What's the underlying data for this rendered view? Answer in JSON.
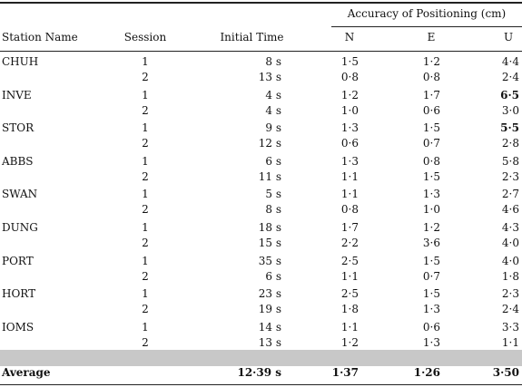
{
  "header": {
    "group_title": "Accuracy of Positioning (cm)",
    "station": "Station Name",
    "session": "Session",
    "initial_time": "Initial Time",
    "n": "N",
    "e": "E",
    "u": "U"
  },
  "rows": [
    {
      "station": "CHUH",
      "sessions": [
        {
          "session": "1",
          "time": "8 s",
          "n": "1·5",
          "e": "1·2",
          "u": "4·4",
          "u_bold": false
        },
        {
          "session": "2",
          "time": "13 s",
          "n": "0·8",
          "e": "0·8",
          "u": "2·4",
          "u_bold": false
        }
      ]
    },
    {
      "station": "INVE",
      "sessions": [
        {
          "session": "1",
          "time": "4 s",
          "n": "1·2",
          "e": "1·7",
          "u": "6·5",
          "u_bold": true
        },
        {
          "session": "2",
          "time": "4 s",
          "n": "1·0",
          "e": "0·6",
          "u": "3·0",
          "u_bold": false
        }
      ]
    },
    {
      "station": "STOR",
      "sessions": [
        {
          "session": "1",
          "time": "9 s",
          "n": "1·3",
          "e": "1·5",
          "u": "5·5",
          "u_bold": true
        },
        {
          "session": "2",
          "time": "12 s",
          "n": "0·6",
          "e": "0·7",
          "u": "2·8",
          "u_bold": false
        }
      ]
    },
    {
      "station": "ABBS",
      "sessions": [
        {
          "session": "1",
          "time": "6 s",
          "n": "1·3",
          "e": "0·8",
          "u": "5·8",
          "u_bold": false
        },
        {
          "session": "2",
          "time": "11 s",
          "n": "1·1",
          "e": "1·5",
          "u": "2·3",
          "u_bold": false
        }
      ]
    },
    {
      "station": "SWAN",
      "sessions": [
        {
          "session": "1",
          "time": "5 s",
          "n": "1·1",
          "e": "1·3",
          "u": "2·7",
          "u_bold": false
        },
        {
          "session": "2",
          "time": "8 s",
          "n": "0·8",
          "e": "1·0",
          "u": "4·6",
          "u_bold": false
        }
      ]
    },
    {
      "station": "DUNG",
      "sessions": [
        {
          "session": "1",
          "time": "18 s",
          "n": "1·7",
          "e": "1·2",
          "u": "4·3",
          "u_bold": false
        },
        {
          "session": "2",
          "time": "15 s",
          "n": "2·2",
          "e": "3·6",
          "u": "4·0",
          "u_bold": false
        }
      ]
    },
    {
      "station": "PORT",
      "sessions": [
        {
          "session": "1",
          "time": "35 s",
          "n": "2·5",
          "e": "1·5",
          "u": "4·0",
          "u_bold": false
        },
        {
          "session": "2",
          "time": "6 s",
          "n": "1·1",
          "e": "0·7",
          "u": "1·8",
          "u_bold": false
        }
      ]
    },
    {
      "station": "HORT",
      "sessions": [
        {
          "session": "1",
          "time": "23 s",
          "n": "2·5",
          "e": "1·5",
          "u": "2·3",
          "u_bold": false
        },
        {
          "session": "2",
          "time": "19 s",
          "n": "1·8",
          "e": "1·3",
          "u": "2·4",
          "u_bold": false
        }
      ]
    },
    {
      "station": "IOMS",
      "sessions": [
        {
          "session": "1",
          "time": "14 s",
          "n": "1·1",
          "e": "0·6",
          "u": "3·3",
          "u_bold": false
        },
        {
          "session": "2",
          "time": "13 s",
          "n": "1·2",
          "e": "1·3",
          "u": "1·1",
          "u_bold": false
        }
      ]
    }
  ],
  "average": {
    "label": "Average",
    "time": "12·39 s",
    "n": "1·37",
    "e": "1·26",
    "u": "3·50"
  }
}
